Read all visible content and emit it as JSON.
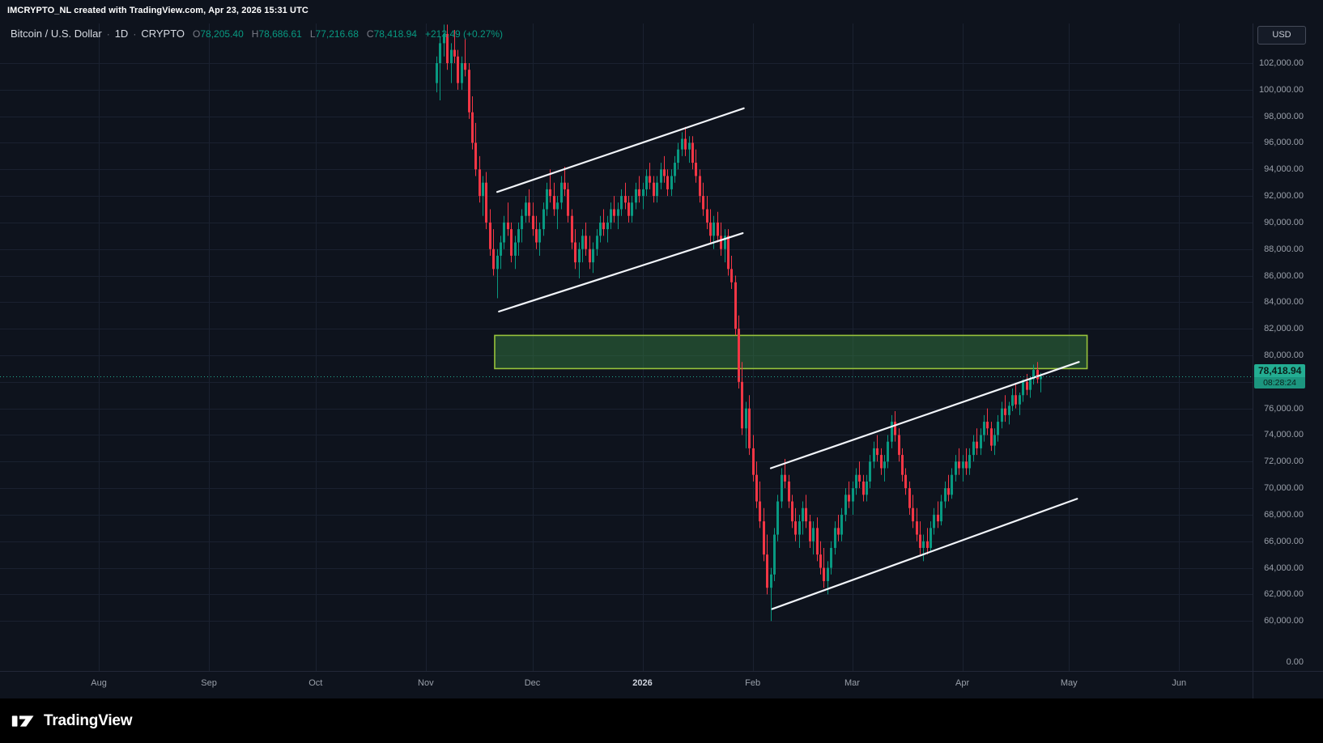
{
  "header": {
    "attribution": "IMCRYPTO_NL created with TradingView.com, Apr 23, 2026 15:31 UTC"
  },
  "legend": {
    "title": "Bitcoin / U.S. Dollar",
    "sep": "·",
    "interval": "1D",
    "exchange": "CRYPTO",
    "o_label": "O",
    "h_label": "H",
    "l_label": "L",
    "c_label": "C",
    "open": "78,205.40",
    "high": "78,686.61",
    "low": "77,216.68",
    "close": "78,418.94",
    "change": "+213.49 (+0.27%)"
  },
  "currency_button": {
    "label": "USD"
  },
  "price_scale": {
    "ticks": [
      {
        "text": "102,000.00",
        "value": 102000
      },
      {
        "text": "100,000.00",
        "value": 100000
      },
      {
        "text": "98,000.00",
        "value": 98000
      },
      {
        "text": "96,000.00",
        "value": 96000
      },
      {
        "text": "94,000.00",
        "value": 94000
      },
      {
        "text": "92,000.00",
        "value": 92000
      },
      {
        "text": "90,000.00",
        "value": 90000
      },
      {
        "text": "88,000.00",
        "value": 88000
      },
      {
        "text": "86,000.00",
        "value": 86000
      },
      {
        "text": "84,000.00",
        "value": 84000
      },
      {
        "text": "82,000.00",
        "value": 82000
      },
      {
        "text": "80,000.00",
        "value": 80000
      },
      {
        "text": "76,000.00",
        "value": 76000
      },
      {
        "text": "74,000.00",
        "value": 74000
      },
      {
        "text": "72,000.00",
        "value": 72000
      },
      {
        "text": "70,000.00",
        "value": 70000
      },
      {
        "text": "68,000.00",
        "value": 68000
      },
      {
        "text": "66,000.00",
        "value": 66000
      },
      {
        "text": "64,000.00",
        "value": 64000
      },
      {
        "text": "62,000.00",
        "value": 62000
      },
      {
        "text": "60,000.00",
        "value": 60000
      }
    ],
    "zero_tick": {
      "text": "0.00"
    },
    "last": {
      "text": "78,418.94",
      "countdown": "08:28:24"
    }
  },
  "time_scale": {
    "ticks": [
      {
        "text": "Aug",
        "i": -95
      },
      {
        "text": "Sep",
        "i": -64
      },
      {
        "text": "Oct",
        "i": -34
      },
      {
        "text": "Nov",
        "i": -3
      },
      {
        "text": "Dec",
        "i": 27
      },
      {
        "text": "2026",
        "i": 58,
        "major": true
      },
      {
        "text": "Feb",
        "i": 89
      },
      {
        "text": "Mar",
        "i": 117
      },
      {
        "text": "Apr",
        "i": 148
      },
      {
        "text": "May",
        "i": 178
      },
      {
        "text": "Jun",
        "i": 209
      }
    ]
  },
  "footer": {
    "brand": "TradingView"
  },
  "colors": {
    "background": "#0e131d",
    "grid": "#1a2130",
    "up": "#089981",
    "down": "#f23645",
    "trendline": "#f2f5fa",
    "zone_fill": "rgba(49,120,63,0.5)",
    "zone_stroke": "#98c33c",
    "badge_bg": "#23ad92",
    "badge_text": "#0a1f1a",
    "countdown_bg": "#1c967f",
    "axis_text": "#9aa0aa",
    "legend_text": "#d6dae2",
    "muted_text": "#787b86",
    "separator": "#222838",
    "attribution_text": "#ffffff",
    "footer_bg": "#000000",
    "year_text": "#cfd4de"
  },
  "chart_data": {
    "type": "candlestick",
    "title": "Bitcoin / U.S. Dollar",
    "interval": "1D",
    "exchange": "CRYPTO",
    "current_price": 78418.94,
    "last": {
      "open": 78205.4,
      "high": 78686.61,
      "low": 77216.68,
      "close": 78418.94,
      "change": 213.49,
      "change_pct": 0.27
    },
    "y_axis": {
      "grid_min": 60000,
      "grid_max": 102000,
      "tick_step": 2000,
      "visible_min": 59000,
      "visible_max": 105000
    },
    "x_axis_months": [
      "Aug",
      "Sep",
      "Oct",
      "Nov",
      "Dec",
      "2026",
      "Feb",
      "Mar",
      "Apr",
      "May",
      "Jun"
    ],
    "zone": {
      "i1": 16.4,
      "i2": 183.1,
      "price_top": 81500,
      "price_bottom": 79000
    },
    "trendlines": [
      {
        "name": "channel-1-upper-trendline",
        "i1": 17.1,
        "p1": 92300,
        "i2": 86.5,
        "p2": 98600
      },
      {
        "name": "channel-1-lower-trendline",
        "i1": 17.6,
        "p1": 83300,
        "i2": 86.2,
        "p2": 89200
      },
      {
        "name": "channel-2-upper-trendline",
        "i1": 94.1,
        "p1": 71500,
        "i2": 180.8,
        "p2": 79500
      },
      {
        "name": "channel-2-lower-trendline",
        "i1": 94.5,
        "p1": 60900,
        "i2": 180.3,
        "p2": 69200
      }
    ],
    "candles": [
      [
        100500,
        102500,
        99800,
        102000
      ],
      [
        102000,
        104000,
        99200,
        103500
      ],
      [
        103500,
        104900,
        102500,
        104200
      ],
      [
        104200,
        104900,
        101500,
        102000
      ],
      [
        102000,
        103500,
        100500,
        103000
      ],
      [
        103000,
        104500,
        102000,
        102500
      ],
      [
        102500,
        103000,
        100000,
        100500
      ],
      [
        100500,
        102500,
        100000,
        102000
      ],
      [
        102000,
        103800,
        101000,
        101500
      ],
      [
        101500,
        102000,
        97800,
        98300
      ],
      [
        98300,
        99500,
        95500,
        96000
      ],
      [
        96000,
        97500,
        93500,
        94000
      ],
      [
        94000,
        95000,
        91500,
        92000
      ],
      [
        92000,
        93500,
        90500,
        93000
      ],
      [
        93000,
        93800,
        89500,
        90000
      ],
      [
        90000,
        91000,
        87500,
        88000
      ],
      [
        88000,
        89500,
        86000,
        86500
      ],
      [
        86500,
        88000,
        84300,
        87500
      ],
      [
        87500,
        89000,
        86500,
        88500
      ],
      [
        88500,
        90500,
        88000,
        90000
      ],
      [
        90000,
        91500,
        89000,
        89500
      ],
      [
        89500,
        90000,
        87000,
        87500
      ],
      [
        87500,
        89000,
        86500,
        88500
      ],
      [
        88500,
        90000,
        87500,
        89500
      ],
      [
        89500,
        91000,
        88500,
        90500
      ],
      [
        90500,
        92000,
        90000,
        91500
      ],
      [
        91500,
        92500,
        90000,
        90500
      ],
      [
        90500,
        91500,
        89000,
        89500
      ],
      [
        89500,
        90500,
        88000,
        88500
      ],
      [
        88500,
        90000,
        87500,
        89500
      ],
      [
        89500,
        91500,
        89000,
        91000
      ],
      [
        91000,
        93000,
        90500,
        92500
      ],
      [
        92500,
        94000,
        91500,
        92000
      ],
      [
        92000,
        93000,
        90500,
        91000
      ],
      [
        91000,
        92000,
        89500,
        91500
      ],
      [
        91500,
        93500,
        91000,
        93000
      ],
      [
        93000,
        94200,
        92000,
        92500
      ],
      [
        92500,
        93000,
        90000,
        90500
      ],
      [
        90500,
        91000,
        88000,
        88500
      ],
      [
        88500,
        89500,
        86500,
        87000
      ],
      [
        87000,
        88500,
        85800,
        88000
      ],
      [
        88000,
        89500,
        87000,
        89000
      ],
      [
        89000,
        90000,
        87500,
        88000
      ],
      [
        88000,
        89000,
        86500,
        87000
      ],
      [
        87000,
        88500,
        86200,
        88000
      ],
      [
        88000,
        89500,
        87500,
        89000
      ],
      [
        89000,
        90500,
        88500,
        90000
      ],
      [
        90000,
        91000,
        89000,
        89500
      ],
      [
        89500,
        90500,
        88500,
        90000
      ],
      [
        90000,
        91500,
        89500,
        91000
      ],
      [
        91000,
        92000,
        90000,
        90500
      ],
      [
        90500,
        91500,
        89500,
        91000
      ],
      [
        91000,
        92500,
        90500,
        92000
      ],
      [
        92000,
        93000,
        91000,
        91500
      ],
      [
        91500,
        92000,
        90000,
        90500
      ],
      [
        90500,
        92000,
        90000,
        91500
      ],
      [
        91500,
        93000,
        91000,
        92500
      ],
      [
        92500,
        93500,
        91500,
        92000
      ],
      [
        92000,
        93000,
        91000,
        92500
      ],
      [
        92500,
        94000,
        92000,
        93500
      ],
      [
        93500,
        94500,
        92500,
        93000
      ],
      [
        93000,
        93500,
        91500,
        92000
      ],
      [
        92000,
        93500,
        91500,
        93000
      ],
      [
        93000,
        94500,
        92500,
        94000
      ],
      [
        94000,
        95000,
        93000,
        93500
      ],
      [
        93500,
        94000,
        92000,
        92500
      ],
      [
        92500,
        94000,
        92000,
        93500
      ],
      [
        93500,
        95000,
        93000,
        94500
      ],
      [
        94500,
        96000,
        94000,
        95500
      ],
      [
        95500,
        96800,
        95000,
        96300
      ],
      [
        96300,
        97200,
        95000,
        95500
      ],
      [
        95500,
        96500,
        94500,
        96000
      ],
      [
        96000,
        96500,
        94000,
        94500
      ],
      [
        94500,
        95500,
        93000,
        93500
      ],
      [
        93500,
        94000,
        91500,
        92000
      ],
      [
        92000,
        93000,
        90500,
        91000
      ],
      [
        91000,
        92000,
        89500,
        90000
      ],
      [
        90000,
        91000,
        88500,
        89000
      ],
      [
        89000,
        90500,
        88000,
        90000
      ],
      [
        90000,
        90800,
        88500,
        89000
      ],
      [
        89000,
        90000,
        87500,
        88000
      ],
      [
        88000,
        89500,
        87000,
        89000
      ],
      [
        89000,
        89500,
        86000,
        86500
      ],
      [
        86500,
        87500,
        85000,
        85500
      ],
      [
        85500,
        86000,
        81500,
        82000
      ],
      [
        82000,
        83000,
        77500,
        78000
      ],
      [
        78000,
        79500,
        74000,
        74500
      ],
      [
        74500,
        76500,
        73000,
        76000
      ],
      [
        76000,
        77000,
        72500,
        73000
      ],
      [
        73000,
        74000,
        70500,
        71000
      ],
      [
        71000,
        72000,
        68500,
        69000
      ],
      [
        69000,
        70500,
        67000,
        67500
      ],
      [
        67500,
        68500,
        64500,
        65000
      ],
      [
        65000,
        66500,
        62000,
        62500
      ],
      [
        62500,
        64000,
        60000,
        63500
      ],
      [
        63500,
        67000,
        63000,
        66500
      ],
      [
        66500,
        69500,
        66000,
        69000
      ],
      [
        69000,
        71500,
        68500,
        71000
      ],
      [
        71000,
        72200,
        70000,
        70500
      ],
      [
        70500,
        71000,
        68500,
        69000
      ],
      [
        69000,
        69500,
        67000,
        67500
      ],
      [
        67500,
        68500,
        66000,
        66500
      ],
      [
        66500,
        68000,
        65500,
        67500
      ],
      [
        67500,
        69000,
        66500,
        68500
      ],
      [
        68500,
        69500,
        67000,
        67500
      ],
      [
        67500,
        68000,
        65500,
        66000
      ],
      [
        66000,
        67500,
        65000,
        67000
      ],
      [
        67000,
        67800,
        64500,
        65000
      ],
      [
        65000,
        66000,
        63500,
        64000
      ],
      [
        64000,
        65500,
        62500,
        63000
      ],
      [
        63000,
        64500,
        62000,
        64000
      ],
      [
        64000,
        66000,
        63500,
        65500
      ],
      [
        65500,
        67500,
        65000,
        67000
      ],
      [
        67000,
        68000,
        66000,
        66500
      ],
      [
        66500,
        68500,
        66000,
        68000
      ],
      [
        68000,
        70000,
        67500,
        69500
      ],
      [
        69500,
        70500,
        68500,
        69000
      ],
      [
        69000,
        70500,
        68000,
        70000
      ],
      [
        70000,
        71500,
        69500,
        71000
      ],
      [
        71000,
        72000,
        70000,
        70500
      ],
      [
        70500,
        71000,
        69000,
        69500
      ],
      [
        69500,
        71000,
        69000,
        70500
      ],
      [
        70500,
        72500,
        70000,
        72000
      ],
      [
        72000,
        73500,
        71500,
        73000
      ],
      [
        73000,
        74000,
        72000,
        72500
      ],
      [
        72500,
        73000,
        71000,
        71500
      ],
      [
        71500,
        72500,
        70500,
        72000
      ],
      [
        72000,
        74000,
        71500,
        73500
      ],
      [
        73500,
        75500,
        73000,
        75000
      ],
      [
        75000,
        75800,
        73500,
        74000
      ],
      [
        74000,
        74500,
        72000,
        72500
      ],
      [
        72500,
        73000,
        70500,
        71000
      ],
      [
        71000,
        71500,
        69500,
        70000
      ],
      [
        70000,
        70500,
        68000,
        68500
      ],
      [
        68500,
        69500,
        67000,
        67500
      ],
      [
        67500,
        68500,
        66000,
        66500
      ],
      [
        66500,
        67500,
        65000,
        65500
      ],
      [
        65500,
        66500,
        64500,
        66000
      ],
      [
        66000,
        67000,
        65000,
        65500
      ],
      [
        65500,
        67500,
        65200,
        67000
      ],
      [
        67000,
        68500,
        66500,
        68000
      ],
      [
        68000,
        69000,
        67000,
        67500
      ],
      [
        67500,
        69500,
        67200,
        69000
      ],
      [
        69000,
        70500,
        68500,
        70000
      ],
      [
        70000,
        71000,
        69000,
        69500
      ],
      [
        69500,
        71500,
        69200,
        71000
      ],
      [
        71000,
        72500,
        70500,
        72000
      ],
      [
        72000,
        73000,
        71000,
        71500
      ],
      [
        71500,
        72500,
        70500,
        72000
      ],
      [
        72000,
        73000,
        71000,
        71500
      ],
      [
        71500,
        73000,
        71000,
        72500
      ],
      [
        72500,
        74000,
        72000,
        73500
      ],
      [
        73500,
        74500,
        72500,
        73000
      ],
      [
        73000,
        74500,
        72500,
        74000
      ],
      [
        74000,
        75500,
        73500,
        75000
      ],
      [
        75000,
        76000,
        74000,
        74500
      ],
      [
        74500,
        75000,
        72800,
        73200
      ],
      [
        73200,
        74500,
        72500,
        74000
      ],
      [
        74000,
        75500,
        73500,
        75000
      ],
      [
        75000,
        76500,
        74500,
        76000
      ],
      [
        76000,
        77000,
        75000,
        75500
      ],
      [
        75500,
        76500,
        74800,
        76200
      ],
      [
        76200,
        77500,
        75800,
        77000
      ],
      [
        77000,
        77800,
        76000,
        76300
      ],
      [
        76300,
        77200,
        75500,
        77000
      ],
      [
        77000,
        78200,
        76500,
        78000
      ],
      [
        78000,
        78600,
        77000,
        77400
      ],
      [
        77400,
        78400,
        76800,
        78200
      ],
      [
        78200,
        79300,
        77800,
        78900
      ],
      [
        78900,
        79500,
        77900,
        78200
      ],
      [
        78205.4,
        78686.61,
        77216.68,
        78418.94
      ]
    ]
  }
}
